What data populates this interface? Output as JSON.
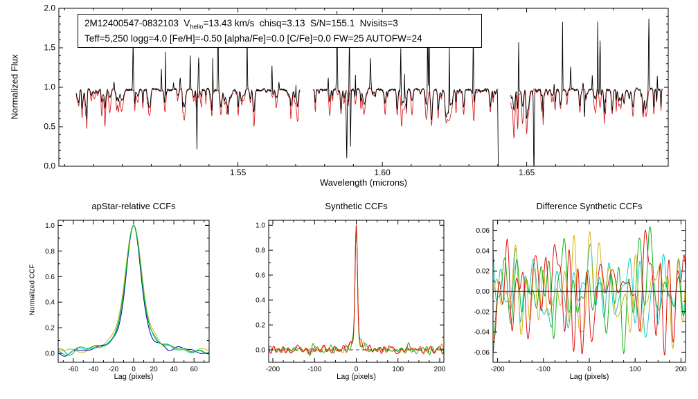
{
  "chart_data": [
    {
      "type": "line",
      "name": "apogee-visit-spectrum",
      "kind": "spectrum",
      "xlabel": "Wavelength (microns)",
      "ylabel": "Normalized Flux",
      "xlim": [
        1.488,
        1.699
      ],
      "ylim": [
        0.0,
        2.0
      ],
      "xticks": {
        "values": [
          1.55,
          1.6,
          1.65
        ],
        "labels": [
          "1.55",
          "1.60",
          "1.65"
        ]
      },
      "yticks": {
        "values": [
          0.0,
          0.5,
          1.0,
          1.5,
          2.0
        ],
        "labels": [
          "0.0",
          "0.5",
          "1.0",
          "1.5",
          "2.0"
        ]
      },
      "xminor": 0.01,
      "yminor": 0.1,
      "tick_font_px": 12,
      "annotation": {
        "line1_prefix": "2M12400547-0832103  V",
        "line1_sub": "helio",
        "line1_suffix": "=13.43 km/s  chisq=3.13  S/N=155.1  Nvisits=3",
        "line2": "Teff=5,250 logg=4.0 [Fe/H]=-0.50 [alpha/Fe]=0.0 [C/Fe]=0.0 FW=25 AUTOFW=24"
      },
      "spectrum": {
        "chunks": [
          [
            1.494,
            1.5715
          ],
          [
            1.576,
            1.6402
          ],
          [
            1.6445,
            1.697
          ]
        ],
        "continuum": 0.97,
        "deep_absorption_lines": [
          1.6402,
          1.6525
        ],
        "sample_step": 0.0001,
        "absorption_line_spacing": 0.0009,
        "emission_spike_spacing": 0.0045,
        "seed": 42,
        "series": [
          {
            "name": "observed-spectrum",
            "color": "#000000"
          },
          {
            "name": "synthetic-best-fit",
            "color": "#d42020"
          }
        ]
      }
    },
    {
      "type": "line",
      "name": "apstar-relative-ccfs",
      "kind": "ccf",
      "title": "apStar-relative CCFs",
      "xlabel": "Lag (pixels)",
      "ylabel": "Normalized CCF",
      "xlim": [
        -75,
        75
      ],
      "ylim": [
        -0.07,
        1.04
      ],
      "xticks": {
        "values": [
          -60,
          -40,
          -20,
          0,
          20,
          40,
          60
        ],
        "labels": [
          "-60",
          "-40",
          "-20",
          "0",
          "20",
          "40",
          "60"
        ]
      },
      "yticks": {
        "values": [
          0.0,
          0.2,
          0.4,
          0.6,
          0.8,
          1.0
        ],
        "labels": [
          "0.0",
          "0.2",
          "0.4",
          "0.6",
          "0.8",
          "1.0"
        ]
      },
      "xminor": 10,
      "yminor": 0.1,
      "tick_font_px": 10,
      "npts": 240,
      "series": [
        {
          "name": "visit-ccf-yellow",
          "color": "#d2b414",
          "seed": 14,
          "peak": {
            "gfrac": 0.62,
            "sigma": 7.5,
            "gamma": 15
          },
          "amp": 0.013,
          "fmin": 1.5,
          "fmax": 10
        },
        {
          "name": "visit-ccf-blue",
          "color": "#0000b4",
          "seed": 11,
          "peak": {
            "gfrac": 0.62,
            "sigma": 6.5,
            "gamma": 13
          },
          "amp": 0.013,
          "fmin": 1.5,
          "fmax": 10
        },
        {
          "name": "visit-ccf-cyan",
          "color": "#00c8c8",
          "seed": 12,
          "peak": {
            "gfrac": 0.62,
            "sigma": 7.0,
            "gamma": 14
          },
          "amp": 0.012,
          "fmin": 1.5,
          "fmax": 10
        },
        {
          "name": "combined-ccf-green",
          "color": "#00b414",
          "seed": 13,
          "peak": {
            "gfrac": 0.62,
            "sigma": 7.0,
            "gamma": 14
          },
          "amp": 0.011,
          "fmin": 1.5,
          "fmax": 10
        }
      ]
    },
    {
      "type": "line",
      "name": "synthetic-ccfs",
      "kind": "ccf",
      "title": "Synthetic CCFs",
      "xlabel": "Lag (pixels)",
      "xlim": [
        -210,
        210
      ],
      "ylim": [
        -0.1,
        1.04
      ],
      "xticks": {
        "values": [
          -200,
          -100,
          0,
          100,
          200
        ],
        "labels": [
          "-200",
          "-100",
          "0",
          "100",
          "200"
        ]
      },
      "yticks": {
        "values": [
          0.0,
          0.2,
          0.4,
          0.6,
          0.8,
          1.0
        ],
        "labels": [
          "0.0",
          "0.2",
          "0.4",
          "0.6",
          "0.8",
          "1.0"
        ]
      },
      "xminor": 25,
      "yminor": 0.1,
      "tick_font_px": 10,
      "npts": 400,
      "zero_line": {
        "color": "#404040",
        "dash": "5 4"
      },
      "series": [
        {
          "name": "synthetic-ccf-orange",
          "color": "#dc8c14",
          "seed": 22,
          "peak": {
            "gfrac": 0.8,
            "sigma": 2.8,
            "gamma": 7
          },
          "amp": 0.016,
          "fmin": 6,
          "fmax": 40
        },
        {
          "name": "synthetic-ccf-green",
          "color": "#14b414",
          "seed": 23,
          "peak": {
            "gfrac": 0.8,
            "sigma": 2.6,
            "gamma": 6
          },
          "amp": 0.017,
          "fmin": 6,
          "fmax": 40
        },
        {
          "name": "synthetic-ccf-red",
          "color": "#dc1414",
          "seed": 21,
          "peak": {
            "gfrac": 0.8,
            "sigma": 2.7,
            "gamma": 6.5
          },
          "amp": 0.017,
          "fmin": 6,
          "fmax": 40
        }
      ]
    },
    {
      "type": "line",
      "name": "difference-synthetic-ccfs",
      "kind": "ccf",
      "title": "Difference Synthetic CCFs",
      "xlabel": "Lag (pixels)",
      "xlim": [
        -210,
        210
      ],
      "ylim": [
        -0.07,
        0.07
      ],
      "xticks": {
        "values": [
          -200,
          -100,
          0,
          100,
          200
        ],
        "labels": [
          "-200",
          "-100",
          "0",
          "100",
          "200"
        ]
      },
      "yticks": {
        "values": [
          -0.06,
          -0.04,
          -0.02,
          0.0,
          0.02,
          0.04,
          0.06
        ],
        "labels": [
          "-0.06",
          "-0.04",
          "-0.02",
          "0.00",
          "0.02",
          "0.04",
          "0.06"
        ]
      },
      "xminor": 25,
      "yminor": 0.01,
      "tick_font_px": 10,
      "npts": 420,
      "series": [
        {
          "name": "diff-ccf-cyan",
          "color": "#14c8c8",
          "seed": 34,
          "amp": 0.02,
          "fmin": 2,
          "fmax": 25
        },
        {
          "name": "diff-ccf-yellow",
          "color": "#d2b414",
          "seed": 32,
          "amp": 0.023,
          "fmin": 2,
          "fmax": 25
        },
        {
          "name": "diff-ccf-green",
          "color": "#14b414",
          "seed": 33,
          "amp": 0.023,
          "fmin": 2,
          "fmax": 25
        },
        {
          "name": "diff-ccf-red",
          "color": "#dc1414",
          "seed": 31,
          "amp": 0.026,
          "fmin": 2,
          "fmax": 25
        },
        {
          "name": "diff-ccf-blue-zero",
          "color": "#1414cc",
          "kind": "flat",
          "y": 0
        }
      ]
    }
  ],
  "colors": {
    "background": "#ffffff",
    "axis": "#000000",
    "observed": "#000000",
    "synthetic": "#d42020"
  }
}
